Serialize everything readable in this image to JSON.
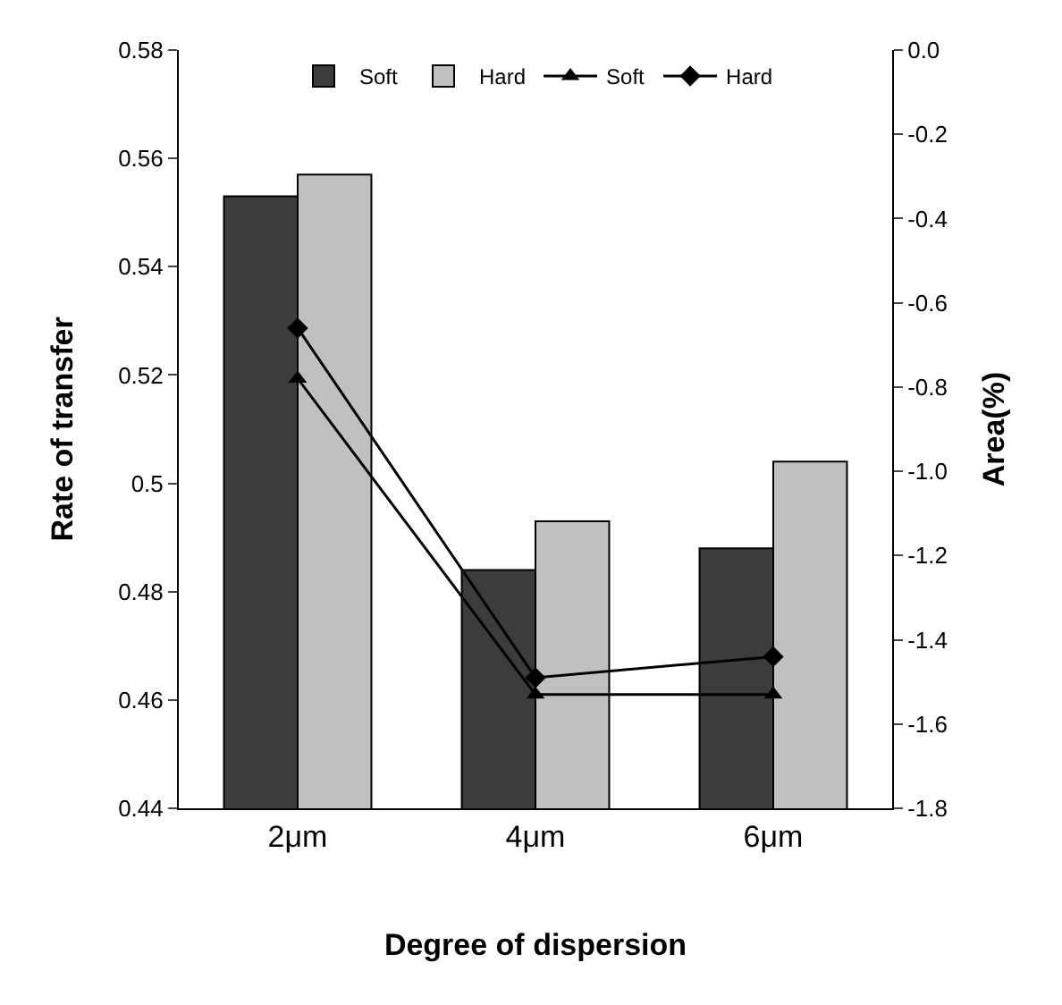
{
  "chart_data": {
    "type": "bar",
    "xlabel": "Degree of dispersion",
    "ylabel": "Rate of transfer",
    "y2label": "Area(%)",
    "categories": [
      "2μm",
      "4μm",
      "6μm"
    ],
    "series": [
      {
        "name": "Soft",
        "color": "#3c3c3c",
        "values": [
          0.553,
          0.484,
          0.488
        ]
      },
      {
        "name": "Hard",
        "color": "#c0c0c0",
        "values": [
          0.557,
          0.493,
          0.504
        ]
      },
      {
        "name": "Soft",
        "type": "line",
        "axis": "y2",
        "color": "#000000",
        "marker": "triangle",
        "values": [
          -0.78,
          -1.53,
          -1.53
        ]
      },
      {
        "name": "Hard",
        "type": "line",
        "axis": "y2",
        "color": "#000000",
        "marker": "diamond",
        "values": [
          -0.66,
          -1.49,
          -1.44
        ]
      }
    ],
    "ylim": [
      0.44,
      0.58
    ],
    "yticks": [
      0.44,
      0.46,
      0.48,
      {
        "value": 0.5,
        "label": "0.5"
      },
      0.52,
      0.54,
      0.56,
      0.58
    ],
    "y2lim": [
      -1.8,
      0
    ],
    "y2ticks": [
      {
        "value": -1.8,
        "label": "-1.8"
      },
      {
        "value": -1.6,
        "label": "-1.6"
      },
      {
        "value": -1.4,
        "label": "-1.4"
      },
      {
        "value": -1.2,
        "label": "-1.2"
      },
      {
        "value": -1,
        "label": "-1.0"
      },
      {
        "value": -0.8,
        "label": "-0.8"
      },
      {
        "value": -0.6,
        "label": "-0.6"
      },
      {
        "value": -0.4,
        "label": "-0.4"
      },
      {
        "value": -0.2,
        "label": "-0.2"
      },
      {
        "value": 0,
        "label": "0.0"
      }
    ],
    "grid": false,
    "legend": "top",
    "line_style": "solid"
  }
}
